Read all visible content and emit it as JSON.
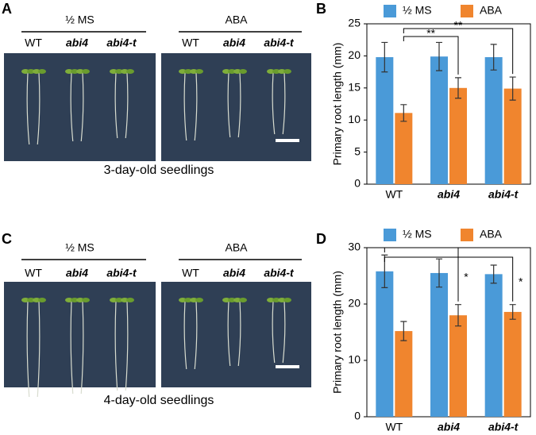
{
  "panels": [
    {
      "letter": "A",
      "caption": "3-day-old seedlings",
      "groups": [
        {
          "label": "½ MS",
          "genotypes": [
            "WT",
            "abi4",
            "abi4-t"
          ]
        },
        {
          "label": "ABA",
          "genotypes": [
            "WT",
            "abi4",
            "abi4-t"
          ]
        }
      ]
    },
    {
      "letter": "C",
      "caption": "4-day-old seedlings",
      "groups": [
        {
          "label": "½ MS",
          "genotypes": [
            "WT",
            "abi4",
            "abi4-t"
          ]
        },
        {
          "label": "ABA",
          "genotypes": [
            "WT",
            "abi4",
            "abi4-t"
          ]
        }
      ]
    }
  ],
  "chart_data": [
    {
      "type": "bar",
      "panel_label": "B",
      "y_label": "Primary root length (mm)",
      "categories": [
        "WT",
        "abi4",
        "abi4-t"
      ],
      "series": [
        {
          "name": "½ MS",
          "color": "#4a9ad8",
          "values": [
            19.8,
            19.9,
            19.8
          ],
          "errors": [
            2.3,
            2.2,
            2.0
          ]
        },
        {
          "name": "ABA",
          "color": "#f0852e",
          "values": [
            11.1,
            15.0,
            14.9
          ],
          "errors": [
            1.3,
            1.6,
            1.8
          ]
        }
      ],
      "ylim": [
        0,
        25
      ],
      "yticks": [
        0,
        5,
        10,
        15,
        20,
        25
      ],
      "annotations": [
        "**",
        "**"
      ]
    },
    {
      "type": "bar",
      "panel_label": "D",
      "y_label": "Primary root length (mm)",
      "categories": [
        "WT",
        "abi4",
        "abi4-t"
      ],
      "series": [
        {
          "name": "½ MS",
          "color": "#4a9ad8",
          "values": [
            25.8,
            25.5,
            25.3
          ],
          "errors": [
            2.9,
            2.5,
            1.6
          ]
        },
        {
          "name": "ABA",
          "color": "#f0852e",
          "values": [
            15.2,
            18.0,
            18.6
          ],
          "errors": [
            1.7,
            1.9,
            1.3
          ]
        }
      ],
      "ylim": [
        0,
        30
      ],
      "yticks": [
        0,
        10,
        20,
        30
      ],
      "annotations": [
        "*",
        "*"
      ]
    }
  ]
}
